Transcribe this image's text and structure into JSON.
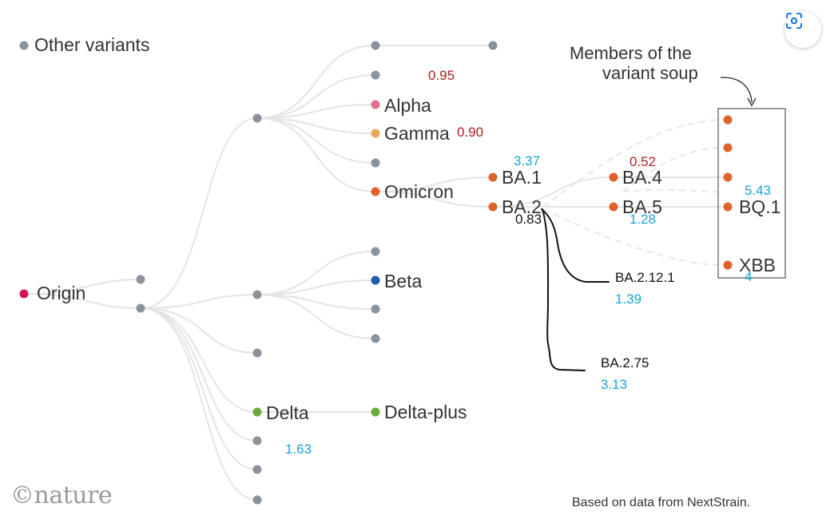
{
  "legend": {
    "label": "Other variants",
    "color": "#8a939c"
  },
  "colors": {
    "origin": "#d4144f",
    "other": "#8a939c",
    "alpha": "#e0708a",
    "gamma": "#eba657",
    "omicron": "#e0622a",
    "beta": "#1d5fa8",
    "delta": "#6aa93a",
    "red_number": "#b01c1c",
    "blue_number": "#1aa3d9",
    "black_number": "#111111"
  },
  "nodes": {
    "origin": "Origin",
    "alpha": "Alpha",
    "gamma": "Gamma",
    "omicron": "Omicron",
    "beta": "Beta",
    "delta": "Delta",
    "delta_plus": "Delta-plus",
    "ba1": "BA.1",
    "ba2": "BA.2",
    "ba4": "BA.4",
    "ba5": "BA.5",
    "bq1": "BQ.1",
    "xbb": "XBB"
  },
  "soup_caption": {
    "line1": "Members of the",
    "line2": "variant soup"
  },
  "annotations": {
    "ba2121": "BA.2.12.1",
    "ba275": "BA.2.75"
  },
  "numbers": {
    "n_095": "0.95",
    "n_090": "0.90",
    "n_337": "3.37",
    "n_052": "0.52",
    "n_543": "5.43",
    "n_083": "0.83",
    "n_128": "1.28",
    "n_4": "4",
    "n_139": "1.39",
    "n_313": "3.13",
    "n_163": "1.63"
  },
  "footer": {
    "logo": "©nature",
    "credit": "Based on data from NextStrain."
  },
  "toolbar": {
    "lens_icon": "lens-scan-icon"
  }
}
